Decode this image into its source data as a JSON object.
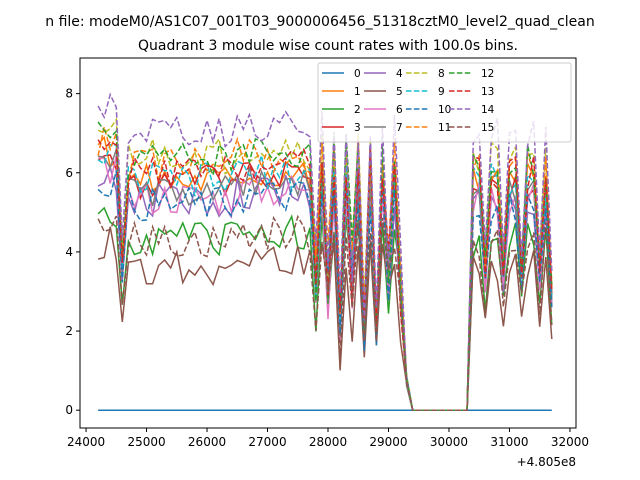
{
  "figure": {
    "suptitle": "n file: modeM0/AS1C07_001T03_9000006456_51318cztM0_level2_quad_clean"
  },
  "chart_data": {
    "type": "line",
    "title": "Quadrant 3 module wise count rates with 100.0s bins.",
    "xlabel": "",
    "ylabel": "",
    "x_offset_label": "+4.805e8",
    "xlim": [
      23900,
      32100
    ],
    "ylim": [
      -0.45,
      8.9
    ],
    "x_ticks": [
      24000,
      25000,
      26000,
      27000,
      28000,
      29000,
      30000,
      31000,
      32000
    ],
    "y_ticks": [
      0,
      2,
      4,
      6,
      8
    ],
    "x_tick_labels": [
      "24000",
      "25000",
      "26000",
      "27000",
      "28000",
      "29000",
      "30000",
      "31000",
      "32000"
    ],
    "y_tick_labels": [
      "0",
      "2",
      "4",
      "6",
      "8"
    ],
    "grid": false,
    "legend_position": "top-right",
    "legend_columns": 4,
    "series": [
      {
        "name": "0",
        "color": "#1f77b4",
        "dash": "solid",
        "level": 0.0,
        "low": 0.0,
        "seed": 0
      },
      {
        "name": "1",
        "color": "#ff7f0e",
        "dash": "solid",
        "level": 5.9,
        "low": 1.8,
        "seed": 1
      },
      {
        "name": "2",
        "color": "#2ca02c",
        "dash": "solid",
        "level": 4.3,
        "low": 1.3,
        "seed": 2
      },
      {
        "name": "3",
        "color": "#d62728",
        "dash": "solid",
        "level": 5.8,
        "low": 1.7,
        "seed": 3
      },
      {
        "name": "4",
        "color": "#9467bd",
        "dash": "solid",
        "level": 5.3,
        "low": 1.6,
        "seed": 4
      },
      {
        "name": "5",
        "color": "#8c564b",
        "dash": "solid",
        "level": 3.6,
        "low": 1.0,
        "seed": 5
      },
      {
        "name": "6",
        "color": "#e377c2",
        "dash": "solid",
        "level": 5.4,
        "low": 1.6,
        "seed": 6
      },
      {
        "name": "7",
        "color": "#7f7f7f",
        "dash": "solid",
        "level": 5.6,
        "low": 1.7,
        "seed": 7
      },
      {
        "name": "8",
        "color": "#bcbd22",
        "dash": "dashed",
        "level": 6.4,
        "low": 2.0,
        "seed": 8
      },
      {
        "name": "9",
        "color": "#17becf",
        "dash": "dashed",
        "level": 5.8,
        "low": 1.8,
        "seed": 9
      },
      {
        "name": "10",
        "color": "#1f77b4",
        "dash": "dashed",
        "level": 5.2,
        "low": 1.5,
        "seed": 10
      },
      {
        "name": "11",
        "color": "#ff7f0e",
        "dash": "dashed",
        "level": 6.2,
        "low": 1.9,
        "seed": 11
      },
      {
        "name": "12",
        "color": "#2ca02c",
        "dash": "dashed",
        "level": 6.3,
        "low": 1.9,
        "seed": 12
      },
      {
        "name": "13",
        "color": "#d62728",
        "dash": "dashed",
        "level": 6.0,
        "low": 1.8,
        "seed": 13
      },
      {
        "name": "14",
        "color": "#9467bd",
        "dash": "dashed",
        "level": 7.0,
        "low": 2.2,
        "seed": 14
      },
      {
        "name": "15",
        "color": "#8c564b",
        "dash": "dashed",
        "level": 4.3,
        "low": 1.3,
        "seed": 15
      }
    ]
  }
}
